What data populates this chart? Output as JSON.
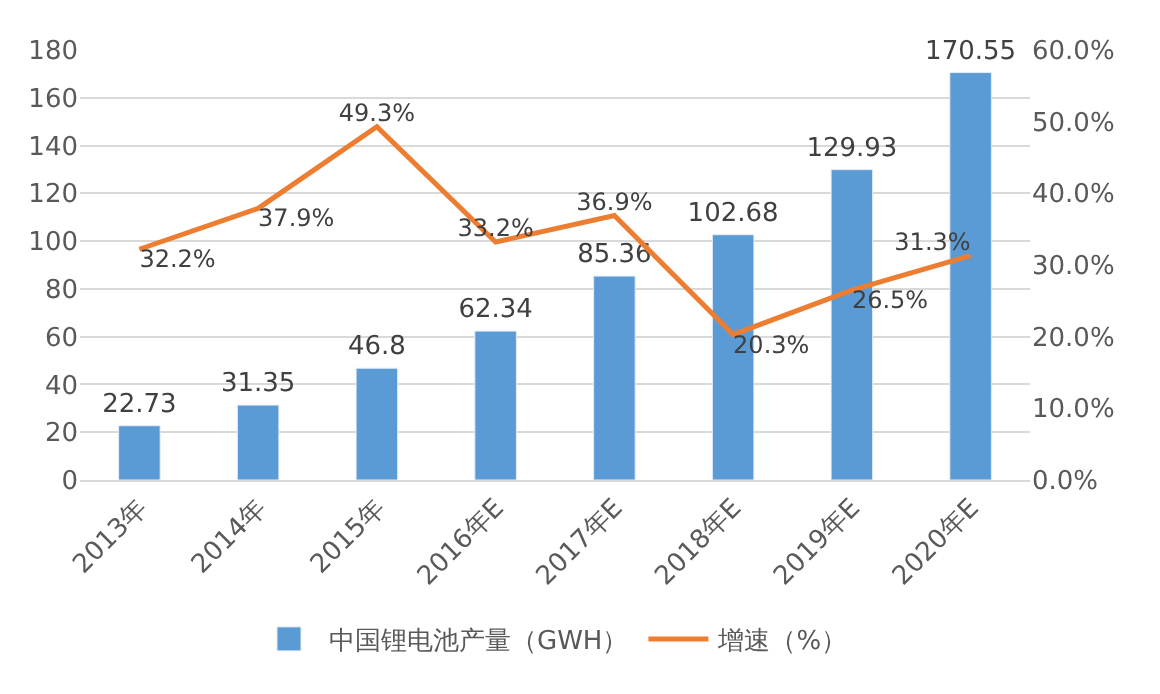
{
  "chart_data": {
    "type": "bar",
    "categories": [
      "2013年",
      "2014年",
      "2015年",
      "2016年E",
      "2017年E",
      "2018年E",
      "2019年E",
      "2020年E"
    ],
    "series": [
      {
        "name": "中国锂电池产量（GWH）",
        "color": "#5b9bd5",
        "values": [
          22.73,
          31.35,
          46.8,
          62.34,
          85.36,
          102.68,
          129.93,
          170.55
        ],
        "data_labels": true
      },
      {
        "name": "增速（%）",
        "type": "line",
        "axis": "y2",
        "color": "#ed7d31",
        "values": [
          32.2,
          37.9,
          49.3,
          33.2,
          36.9,
          20.3,
          26.5,
          31.3
        ],
        "value_labels": [
          "32.2%",
          "37.9%",
          "49.3%",
          "33.2%",
          "36.9%",
          "20.3%",
          "26.5%",
          "31.3%"
        ],
        "marker": "none"
      }
    ],
    "ylim": [
      0,
      180
    ],
    "yticks": [
      0,
      20,
      40,
      60,
      80,
      100,
      120,
      140,
      160,
      180
    ],
    "y2lim": [
      0,
      60
    ],
    "y2ticks": [
      {
        "value": 0,
        "label": "0.0%"
      },
      {
        "value": 10,
        "label": "10.0%"
      },
      {
        "value": 20,
        "label": "20.0%"
      },
      {
        "value": 30,
        "label": "30.0%"
      },
      {
        "value": 40,
        "label": "40.0%"
      },
      {
        "value": 50,
        "label": "50.0%"
      },
      {
        "value": 60,
        "label": "60.0%"
      }
    ],
    "grid": "y",
    "legend": "bottom"
  }
}
